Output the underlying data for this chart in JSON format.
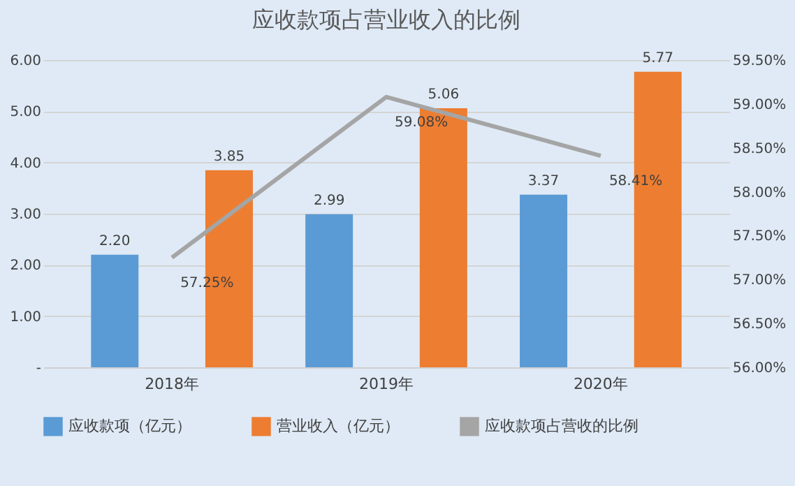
{
  "chart_data": {
    "type": "bar",
    "title": "应收款项占营业收入的比例",
    "categories": [
      "2018年",
      "2019年",
      "2020年"
    ],
    "series": [
      {
        "name": "应收款项（亿元）",
        "color": "#5b9bd5",
        "values": [
          2.2,
          2.99,
          3.37
        ],
        "value_labels": [
          "2.20",
          "2.99",
          "3.37"
        ]
      },
      {
        "name": "营业收入（亿元）",
        "color": "#ed7d31",
        "values": [
          3.85,
          5.06,
          5.77
        ],
        "value_labels": [
          "3.85",
          "5.06",
          "5.77"
        ]
      },
      {
        "name": "应收款项占营收的比例",
        "color": "#a5a5a5",
        "type": "line",
        "axis": "y2",
        "values": [
          57.25,
          59.08,
          58.41
        ],
        "value_labels": [
          "57.25%",
          "59.08%",
          "58.41%"
        ]
      }
    ],
    "ylim": [
      0,
      6
    ],
    "yticks": [
      {
        "value": 0,
        "label": "-"
      },
      {
        "value": 1,
        "label": "1.00"
      },
      {
        "value": 2,
        "label": "2.00"
      },
      {
        "value": 3,
        "label": "3.00"
      },
      {
        "value": 4,
        "label": "4.00"
      },
      {
        "value": 5,
        "label": "5.00"
      },
      {
        "value": 6,
        "label": "6.00"
      }
    ],
    "y2lim": [
      56,
      59.5
    ],
    "y2ticks": [
      {
        "value": 56,
        "label": "56.00%"
      },
      {
        "value": 56.5,
        "label": "56.50%"
      },
      {
        "value": 57,
        "label": "57.00%"
      },
      {
        "value": 57.5,
        "label": "57.50%"
      },
      {
        "value": 58,
        "label": "58.00%"
      },
      {
        "value": 58.5,
        "label": "58.50%"
      },
      {
        "value": 59,
        "label": "59.00%"
      },
      {
        "value": 59.5,
        "label": "59.50%"
      }
    ],
    "grid": "y",
    "legend": "bottom",
    "marker": "none"
  }
}
